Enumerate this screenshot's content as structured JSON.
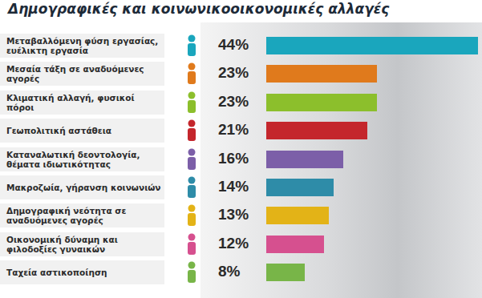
{
  "chart_data": {
    "type": "bar",
    "orientation": "horizontal",
    "title": "Δημογραφικές και κοινωνικοοικονομικές αλλαγές",
    "categories": [
      "Μεταβαλλόμενη φύση εργασίας, ευέλικτη εργασία",
      "Μεσαία τάξη σε αναδυόμενες αγορές",
      "Κλιματική αλλαγή, φυσικοί πόροι",
      "Γεωπολιτική αστάθεια",
      "Καταναλωτική δεοντολογία, θέματα ιδιωτικότητας",
      "Μακροζωία, γήρανση κοινωνιών",
      "Δημογραφική νεότητα σε αναδυόμενες αγορές",
      "Οικονομική δύναμη και φιλοδοξίες γυναικών",
      "Ταχεία αστικοποίηση"
    ],
    "values": [
      44,
      23,
      23,
      21,
      16,
      14,
      13,
      12,
      8
    ],
    "value_labels": [
      "44%",
      "23%",
      "23%",
      "21%",
      "16%",
      "14%",
      "13%",
      "12%",
      "8%"
    ],
    "colors": [
      "#1aa6bd",
      "#e07a1c",
      "#8cbf2c",
      "#c4262c",
      "#7c5fa8",
      "#2e8ca8",
      "#e3b317",
      "#d6508f",
      "#78b548"
    ],
    "data_labels": true,
    "tick_labels": false,
    "grid": false
  }
}
